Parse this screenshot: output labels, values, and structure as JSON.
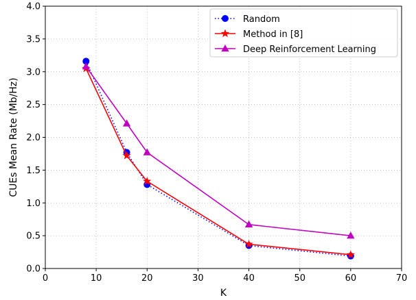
{
  "chart_data": {
    "type": "line",
    "xlabel": "K",
    "ylabel": "CUEs Mean Rate (Mb/Hz)",
    "xlim": [
      0,
      70
    ],
    "ylim": [
      0,
      4
    ],
    "xticks": [
      0,
      10,
      20,
      30,
      40,
      50,
      60,
      70
    ],
    "yticks": [
      0.0,
      0.5,
      1.0,
      1.5,
      2.0,
      2.5,
      3.0,
      3.5,
      4.0
    ],
    "xtick_labels": [
      "0",
      "10",
      "20",
      "30",
      "40",
      "50",
      "60",
      "70"
    ],
    "ytick_labels": [
      "0.0",
      "0.5",
      "1.0",
      "1.5",
      "2.0",
      "2.5",
      "3.0",
      "3.5",
      "4.0"
    ],
    "grid": true,
    "legend_position": "top-right",
    "series": [
      {
        "name": "Random",
        "color": "#0000ff",
        "line_style": "dotted",
        "marker": "circle",
        "x": [
          8,
          16,
          20,
          40,
          60
        ],
        "values": [
          3.16,
          1.77,
          1.28,
          0.35,
          0.19
        ]
      },
      {
        "name": "Method in [8]",
        "color": "#ff0000",
        "line_style": "solid",
        "marker": "star",
        "x": [
          8,
          16,
          20,
          40,
          60
        ],
        "values": [
          3.05,
          1.72,
          1.33,
          0.37,
          0.21
        ]
      },
      {
        "name": "Deep Reinforcement Learning",
        "color": "#bf00bf",
        "line_style": "solid",
        "marker": "triangle",
        "x": [
          8,
          16,
          20,
          40,
          60
        ],
        "values": [
          3.08,
          2.21,
          1.77,
          0.67,
          0.5
        ]
      }
    ]
  }
}
